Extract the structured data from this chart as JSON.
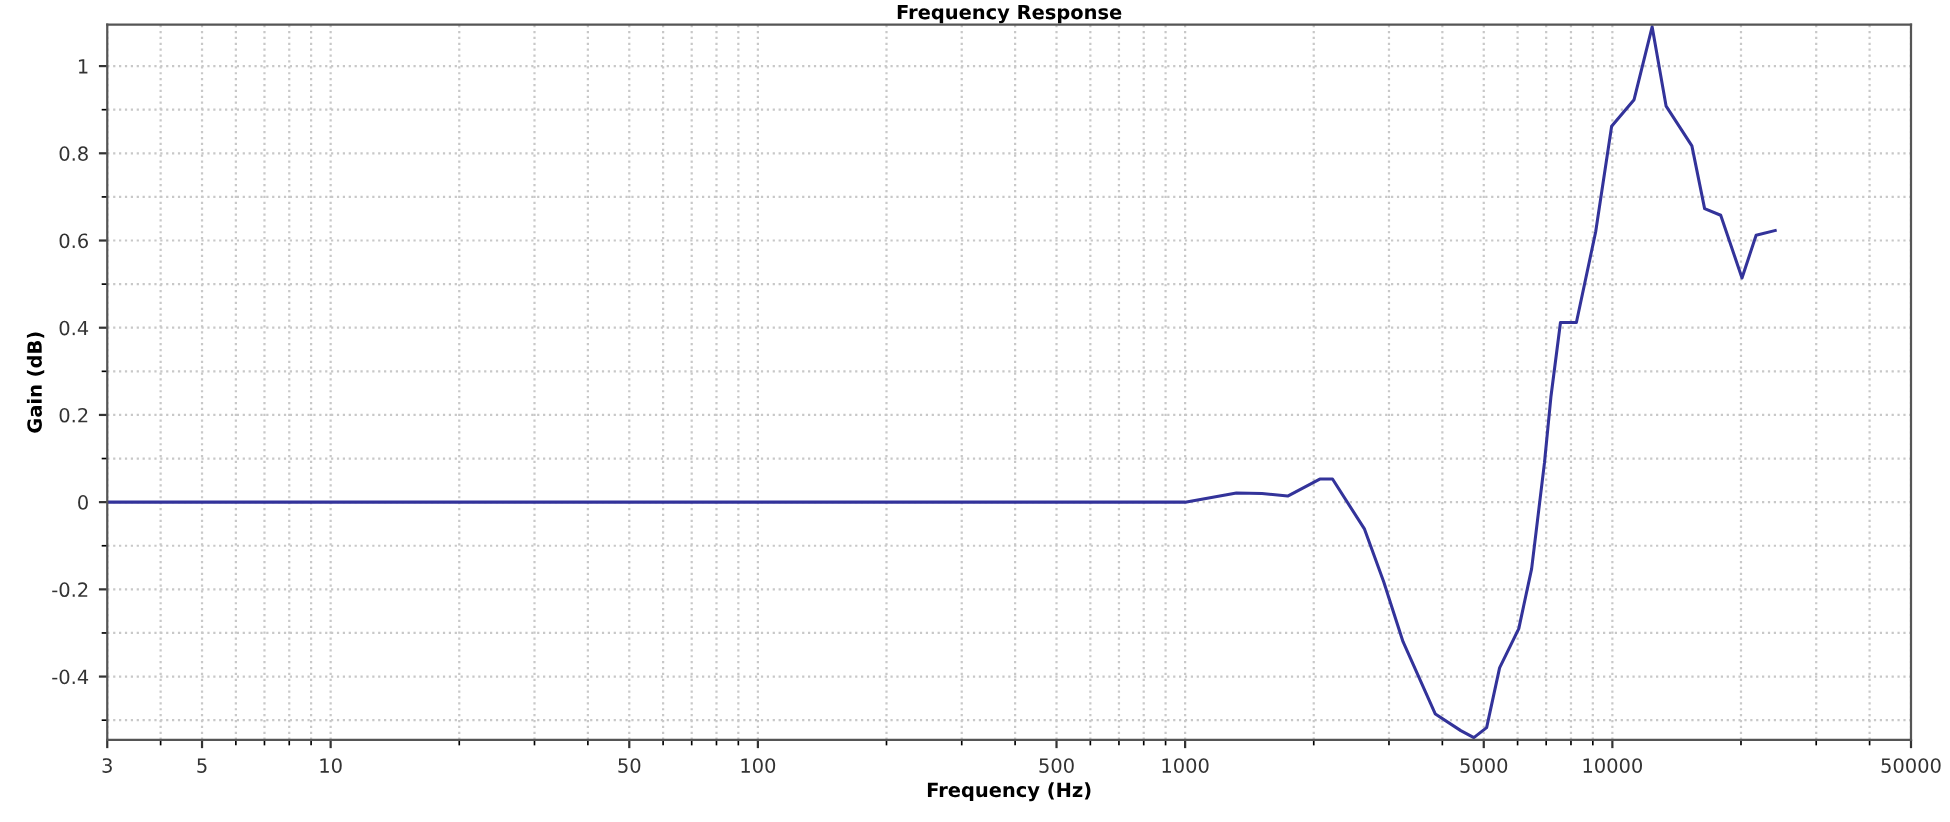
{
  "chart_data": {
    "type": "line",
    "title": "Frequency Response",
    "xlabel": "Frequency (Hz)",
    "ylabel": "Gain (dB)",
    "log": "x",
    "grid": true,
    "marker": "none",
    "line_style": "solid",
    "xlim": [
      3,
      50000
    ],
    "xticks": [
      3,
      5,
      10,
      50,
      100,
      500,
      1000,
      5000,
      10000,
      50000
    ],
    "ylim": [
      -0.545,
      1.095
    ],
    "yticks": [
      -0.4,
      -0.2,
      0,
      0.2,
      0.4,
      0.6,
      0.8,
      1
    ],
    "series": [
      {
        "color": "#33339a",
        "x": [
          3,
          795,
          1000,
          1318,
          1513,
          1738,
          2066,
          2213,
          2630,
          2917,
          3236,
          3852,
          4418,
          4740,
          5078,
          5445,
          6039,
          6471,
          6935,
          7180,
          7560,
          8237,
          9140,
          9960,
          11240,
          12390,
          13360,
          15350,
          16440,
          17930,
          20110,
          21700,
          24050
        ],
        "values": [
          0,
          0,
          0,
          0.021,
          0.02,
          0.014,
          0.053,
          0.053,
          -0.062,
          -0.183,
          -0.32,
          -0.486,
          -0.524,
          -0.54,
          -0.517,
          -0.38,
          -0.29,
          -0.153,
          0.09,
          0.241,
          0.412,
          0.412,
          0.62,
          0.862,
          0.923,
          1.09,
          0.908,
          0.817,
          0.673,
          0.658,
          0.514,
          0.612,
          0.623
        ]
      }
    ]
  }
}
